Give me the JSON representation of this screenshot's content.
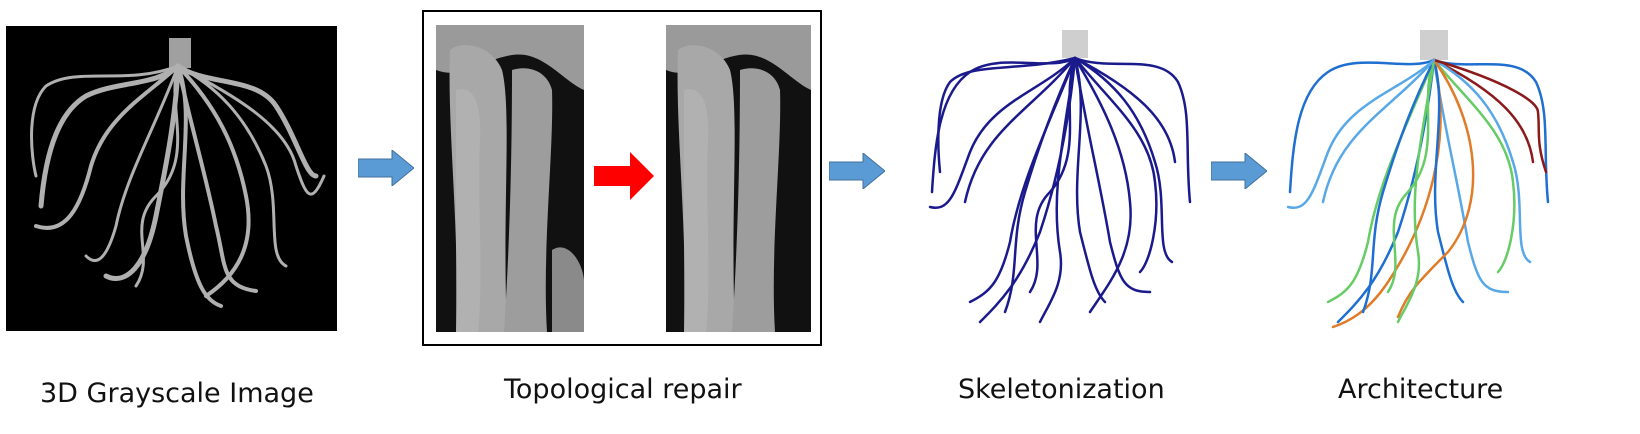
{
  "captions": {
    "grayscale": "3D Grayscale Image",
    "repair": "Topological repair",
    "skeleton": "Skeletonization",
    "architecture": "Architecture"
  },
  "colors": {
    "background": "#ffffff",
    "pipeline_arrow": "#5b9bd5",
    "repair_arrow": "#ff0000",
    "skeleton_line": "#1a1a8c",
    "architecture_lines": [
      "#1f6fd1",
      "#58a8e8",
      "#66cc66",
      "#e07b28",
      "#8b1a1a"
    ]
  },
  "icons": {
    "pipeline_arrow": "right-block-arrow",
    "repair_arrow": "right-block-arrow"
  }
}
